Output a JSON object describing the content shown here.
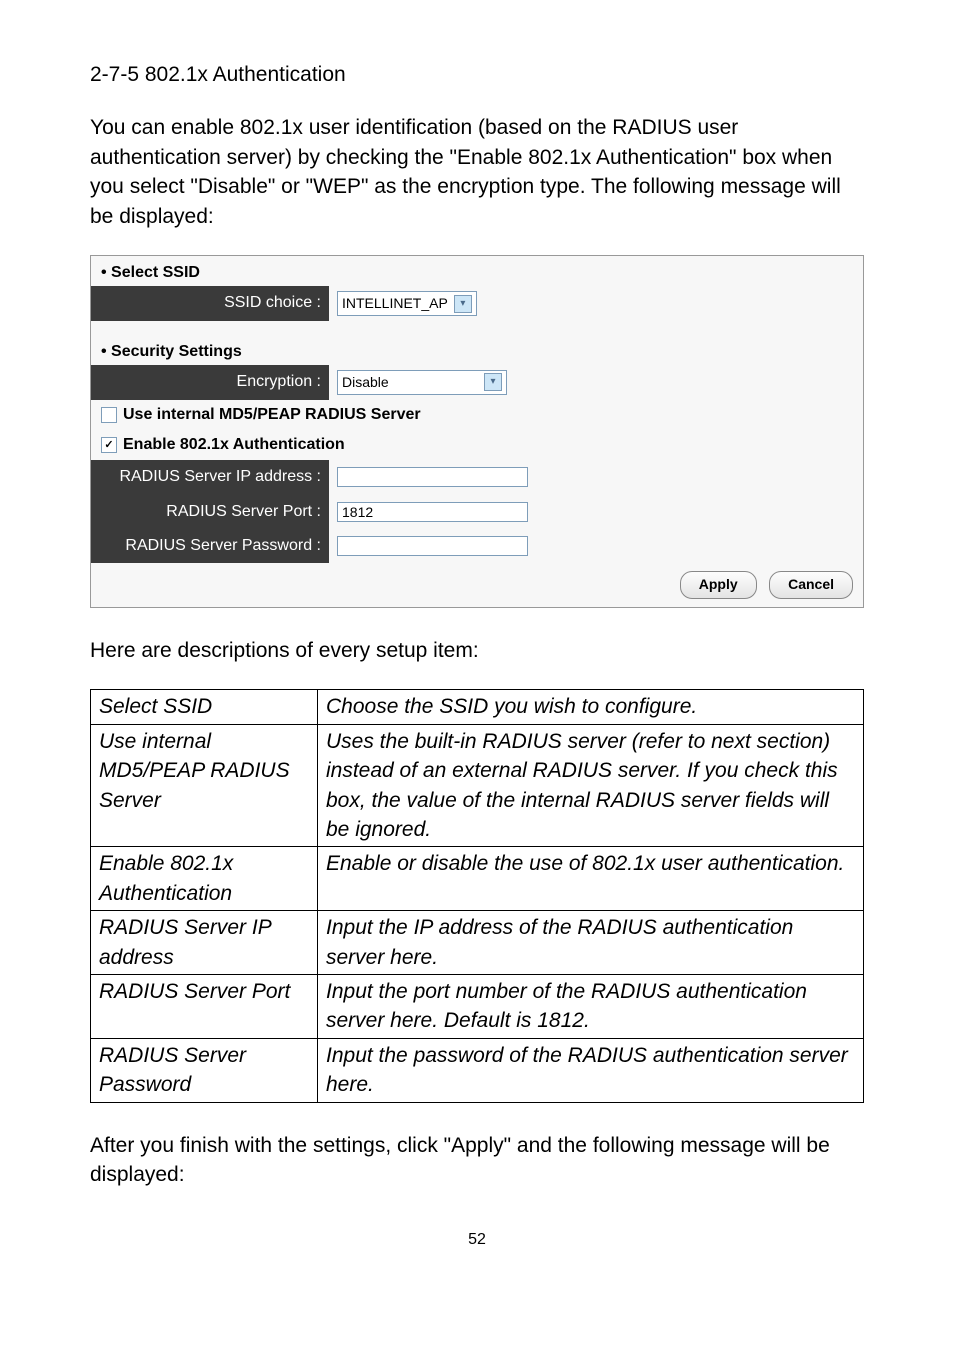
{
  "section_title": "2-7-5 802.1x Authentication",
  "intro_paragraph": "You can enable 802.1x user identification (based on the RADIUS user authentication server) by checking the \"Enable 802.1x Authentication\" box when you select \"Disable\" or \"WEP\" as the encryption type. The following message will be displayed:",
  "panel": {
    "select_ssid_header": "Select SSID",
    "ssid_choice_label": "SSID choice :",
    "ssid_choice_value": "INTELLINET_AP",
    "security_header": "Security Settings",
    "encryption_label": "Encryption :",
    "encryption_value": "Disable",
    "use_internal_label": "Use internal MD5/PEAP RADIUS Server",
    "enable_8021x_label": "Enable 802.1x Authentication",
    "radius_ip_label": "RADIUS Server IP address :",
    "radius_ip_value": "",
    "radius_port_label": "RADIUS Server Port :",
    "radius_port_value": "1812",
    "radius_pw_label": "RADIUS Server Password :",
    "radius_pw_value": "",
    "apply_label": "Apply",
    "cancel_label": "Cancel"
  },
  "desc_intro": "Here are descriptions of every setup item:",
  "table": {
    "rows": [
      [
        "Select SSID",
        "Choose the SSID you wish to configure."
      ],
      [
        "Use internal MD5/PEAP RADIUS Server",
        "Uses the built-in RADIUS server (refer to next section) instead of an external RADIUS server. If you check this box, the value of the internal RADIUS server fields will be ignored."
      ],
      [
        "Enable 802.1x Authentication",
        "Enable or disable the use of 802.1x user authentication."
      ],
      [
        "RADIUS Server IP address",
        "Input the IP address of the RADIUS authentication server here."
      ],
      [
        "RADIUS Server Port",
        "Input the port number of the RADIUS authentication server here. Default is 1812."
      ],
      [
        "RADIUS Server Password",
        "Input the password of the RADIUS authentication server here."
      ]
    ]
  },
  "closing_paragraph": "After you finish with the settings, click \"Apply\" and the following message will be displayed:",
  "page_number": "52"
}
